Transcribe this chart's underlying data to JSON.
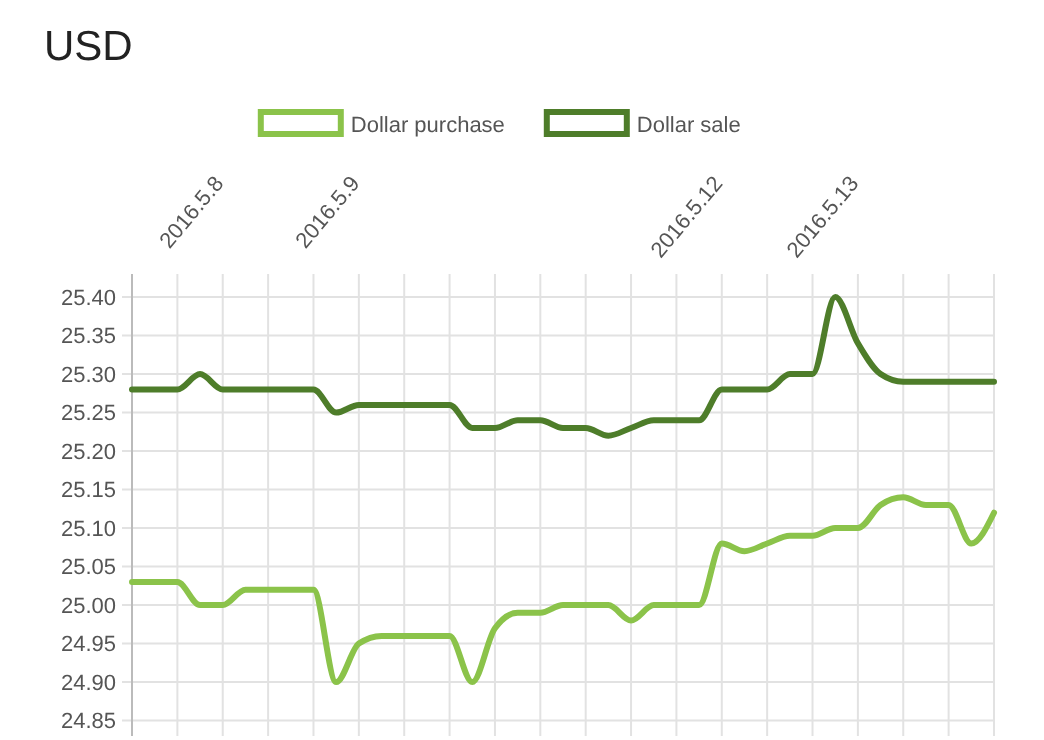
{
  "chart_data": {
    "type": "line",
    "title": "USD",
    "categories": [
      null,
      null,
      null,
      null,
      "2016.5.8",
      null,
      null,
      null,
      null,
      null,
      "2016.5.9",
      null,
      null,
      null,
      null,
      null,
      null,
      null,
      null,
      null,
      null,
      null,
      null,
      null,
      null,
      null,
      "2016.5.12",
      null,
      null,
      null,
      null,
      null,
      "2016.5.13",
      null,
      null,
      null,
      null,
      null,
      null
    ],
    "series": [
      {
        "name": "Dollar purchase",
        "color": "#8bc34a",
        "values": [
          25.03,
          25.03,
          25.03,
          25.0,
          25.0,
          25.02,
          25.02,
          25.02,
          25.02,
          24.9,
          24.95,
          24.96,
          24.96,
          24.96,
          24.96,
          24.9,
          24.97,
          24.99,
          24.99,
          25.0,
          25.0,
          25.0,
          24.98,
          25.0,
          25.0,
          25.0,
          25.08,
          25.07,
          25.08,
          25.09,
          25.09,
          25.1,
          25.1,
          25.13,
          25.14,
          25.13,
          25.13,
          25.08,
          25.12
        ]
      },
      {
        "name": "Dollar sale",
        "color": "#4e7d2a",
        "values": [
          25.28,
          25.28,
          25.28,
          25.3,
          25.28,
          25.28,
          25.28,
          25.28,
          25.28,
          25.25,
          25.26,
          25.26,
          25.26,
          25.26,
          25.26,
          25.23,
          25.23,
          25.24,
          25.24,
          25.23,
          25.23,
          25.22,
          25.23,
          25.24,
          25.24,
          25.24,
          25.28,
          25.28,
          25.28,
          25.3,
          25.3,
          25.4,
          25.34,
          25.3,
          25.29,
          25.29,
          25.29,
          25.29,
          25.29
        ]
      }
    ],
    "ylim": [
      24.83,
      25.43
    ],
    "yticks": [
      {
        "value": 24.85,
        "label": "24.85"
      },
      {
        "value": 24.9,
        "label": "24.90"
      },
      {
        "value": 24.95,
        "label": "24.95"
      },
      {
        "value": 25,
        "label": "25.00"
      },
      {
        "value": 25.05,
        "label": "25.05"
      },
      {
        "value": 25.1,
        "label": "25.10"
      },
      {
        "value": 25.15,
        "label": "25.15"
      },
      {
        "value": 25.2,
        "label": "25.20"
      },
      {
        "value": 25.25,
        "label": "25.25"
      },
      {
        "value": 25.3,
        "label": "25.30"
      },
      {
        "value": 25.35,
        "label": "25.35"
      },
      {
        "value": 25.4,
        "label": "25.40"
      }
    ],
    "grid": true,
    "legend": "top",
    "marker": "none",
    "line_style": "solid"
  }
}
